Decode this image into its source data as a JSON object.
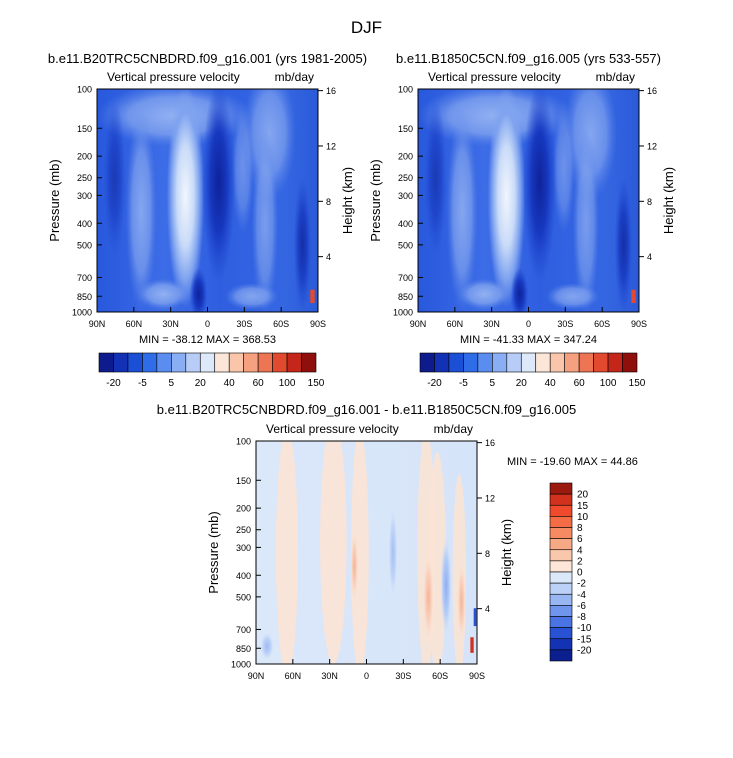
{
  "page_title": "DJF",
  "chart_data": [
    {
      "type": "heatmap",
      "id": "p1",
      "title": "b.e11.B20TRC5CNBDRD.f09_g16.001 (yrs 1981-2005)",
      "subtitle_left": "Vertical pressure velocity",
      "units": "mb/day",
      "xlabel": "",
      "ylabel": "Pressure (mb)",
      "ylabel_right": "Height (km)",
      "x_ticks": [
        "90N",
        "60N",
        "30N",
        "0",
        "30S",
        "60S",
        "90S"
      ],
      "y_ticks": [
        100,
        150,
        200,
        250,
        300,
        400,
        500,
        700,
        850,
        1000
      ],
      "height_ticks": [
        16,
        12,
        8,
        4
      ],
      "ylim": [
        1000,
        100
      ],
      "stats": "MIN = -38.12   MAX = 368.53",
      "min": -38.12,
      "max": 368.53
    },
    {
      "type": "heatmap",
      "id": "p2",
      "title": "b.e11.B1850C5CN.f09_g16.005 (yrs 533-557)",
      "subtitle_left": "Vertical pressure velocity",
      "units": "mb/day",
      "xlabel": "",
      "ylabel": "Pressure (mb)",
      "ylabel_right": "Height (km)",
      "x_ticks": [
        "90N",
        "60N",
        "30N",
        "0",
        "30S",
        "60S",
        "90S"
      ],
      "y_ticks": [
        100,
        150,
        200,
        250,
        300,
        400,
        500,
        700,
        850,
        1000
      ],
      "height_ticks": [
        16,
        12,
        8,
        4
      ],
      "ylim": [
        1000,
        100
      ],
      "stats": "MIN = -41.33   MAX = 347.24",
      "min": -41.33,
      "max": 347.24
    },
    {
      "type": "heatmap",
      "id": "p3",
      "title": "b.e11.B20TRC5CNBDRD.f09_g16.001 - b.e11.B1850C5CN.f09_g16.005",
      "subtitle_left": "Vertical pressure velocity",
      "units": "mb/day",
      "xlabel": "",
      "ylabel": "Pressure (mb)",
      "ylabel_right": "Height (km)",
      "x_ticks": [
        "90N",
        "60N",
        "30N",
        "0",
        "30S",
        "60S",
        "90S"
      ],
      "y_ticks": [
        100,
        150,
        200,
        250,
        300,
        400,
        500,
        700,
        850,
        1000
      ],
      "height_ticks": [
        16,
        12,
        8,
        4
      ],
      "ylim": [
        1000,
        100
      ],
      "stats": "MIN = -19.60   MAX =  44.86",
      "min": -19.6,
      "max": 44.86
    }
  ],
  "colorbar_top": {
    "labels": [
      "-20",
      "-5",
      "5",
      "20",
      "40",
      "60",
      "100",
      "150"
    ],
    "colors": [
      "#0d1b8c",
      "#1231b5",
      "#1b4fd6",
      "#2f6ce8",
      "#5b8df0",
      "#8aaef4",
      "#b7cdf8",
      "#dde9fb",
      "#fbe6d8",
      "#f9c6ab",
      "#f5a07f",
      "#ee7554",
      "#e14a2e",
      "#c5261a",
      "#8f0f0c"
    ]
  },
  "colorbar_diff": {
    "labels": [
      "20",
      "15",
      "10",
      "8",
      "6",
      "4",
      "2",
      "0",
      "-2",
      "-4",
      "-6",
      "-8",
      "-10",
      "-15",
      "-20"
    ],
    "colors": [
      "#9b1a0f",
      "#d1321d",
      "#ee4a2b",
      "#f36c45",
      "#f68a62",
      "#f7a985",
      "#f9c7ac",
      "#fde5d7",
      "#dbe8fa",
      "#bcd1f7",
      "#97b6f2",
      "#6f95ec",
      "#4a73e4",
      "#2951d4",
      "#1433b4",
      "#0b1f8e"
    ]
  }
}
